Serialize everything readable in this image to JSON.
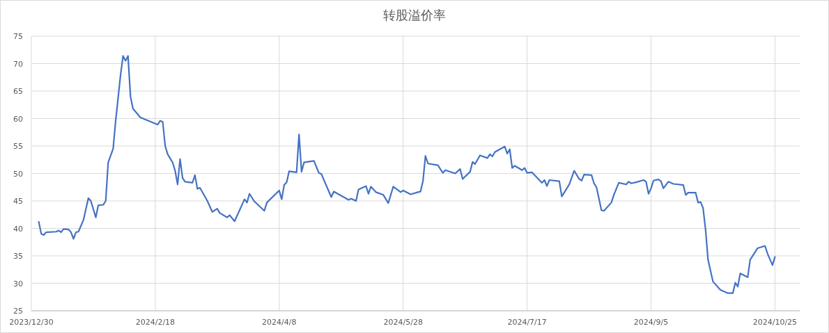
{
  "chart_data": {
    "type": "line",
    "title": "转股溢价率",
    "x": [
      "2024-01-02",
      "2024-01-03",
      "2024-01-04",
      "2024-01-05",
      "2024-01-09",
      "2024-01-10",
      "2024-01-11",
      "2024-01-12",
      "2024-01-14",
      "2024-01-15",
      "2024-01-16",
      "2024-01-17",
      "2024-01-18",
      "2024-01-20",
      "2024-01-22",
      "2024-01-23",
      "2024-01-25",
      "2024-01-26",
      "2024-01-28",
      "2024-01-29",
      "2024-01-30",
      "2024-02-01",
      "2024-02-02",
      "2024-02-04",
      "2024-02-05",
      "2024-02-06",
      "2024-02-07",
      "2024-02-08",
      "2024-02-09",
      "2024-02-12",
      "2024-02-19",
      "2024-02-20",
      "2024-02-21",
      "2024-02-22",
      "2024-02-23",
      "2024-02-25",
      "2024-02-26",
      "2024-02-27",
      "2024-02-28",
      "2024-02-29",
      "2024-03-01",
      "2024-03-04",
      "2024-03-05",
      "2024-03-06",
      "2024-03-07",
      "2024-03-10",
      "2024-03-12",
      "2024-03-14",
      "2024-03-15",
      "2024-03-18",
      "2024-03-19",
      "2024-03-21",
      "2024-03-25",
      "2024-03-26",
      "2024-03-27",
      "2024-03-29",
      "2024-04-02",
      "2024-04-03",
      "2024-04-08",
      "2024-04-09",
      "2024-04-10",
      "2024-04-11",
      "2024-04-12",
      "2024-04-15",
      "2024-04-16",
      "2024-04-17",
      "2024-04-18",
      "2024-04-22",
      "2024-04-24",
      "2024-04-25",
      "2024-04-29",
      "2024-04-30",
      "2024-05-06",
      "2024-05-07",
      "2024-05-09",
      "2024-05-10",
      "2024-05-13",
      "2024-05-14",
      "2024-05-15",
      "2024-05-17",
      "2024-05-20",
      "2024-05-22",
      "2024-05-24",
      "2024-05-27",
      "2024-05-28",
      "2024-05-31",
      "2024-06-03",
      "2024-06-04",
      "2024-06-05",
      "2024-06-06",
      "2024-06-07",
      "2024-06-11",
      "2024-06-13",
      "2024-06-14",
      "2024-06-18",
      "2024-06-20",
      "2024-06-21",
      "2024-06-24",
      "2024-06-25",
      "2024-06-26",
      "2024-06-28",
      "2024-07-01",
      "2024-07-02",
      "2024-07-03",
      "2024-07-04",
      "2024-07-08",
      "2024-07-09",
      "2024-07-10",
      "2024-07-11",
      "2024-07-12",
      "2024-07-15",
      "2024-07-16",
      "2024-07-17",
      "2024-07-19",
      "2024-07-23",
      "2024-07-24",
      "2024-07-25",
      "2024-07-26",
      "2024-07-30",
      "2024-07-31",
      "2024-08-03",
      "2024-08-05",
      "2024-08-07",
      "2024-08-08",
      "2024-08-09",
      "2024-08-12",
      "2024-08-13",
      "2024-08-14",
      "2024-08-16",
      "2024-08-17",
      "2024-08-20",
      "2024-08-21",
      "2024-08-23",
      "2024-08-26",
      "2024-08-27",
      "2024-08-28",
      "2024-08-30",
      "2024-09-02",
      "2024-09-03",
      "2024-09-04",
      "2024-09-05",
      "2024-09-06",
      "2024-09-08",
      "2024-09-09",
      "2024-09-10",
      "2024-09-12",
      "2024-09-14",
      "2024-09-18",
      "2024-09-19",
      "2024-09-20",
      "2024-09-23",
      "2024-09-24",
      "2024-09-25",
      "2024-09-26",
      "2024-09-27",
      "2024-09-28",
      "2024-09-30",
      "2024-10-03",
      "2024-10-06",
      "2024-10-08",
      "2024-10-09",
      "2024-10-10",
      "2024-10-11",
      "2024-10-14",
      "2024-10-15",
      "2024-10-18",
      "2024-10-21",
      "2024-10-22",
      "2024-10-24",
      "2024-10-25"
    ],
    "series": [
      {
        "color": "#4472c4",
        "values": [
          41.2,
          39.0,
          38.8,
          39.3,
          39.4,
          39.6,
          39.3,
          39.9,
          39.8,
          39.3,
          38.1,
          39.3,
          39.4,
          41.5,
          45.5,
          45.0,
          42.0,
          44.2,
          44.3,
          45.0,
          52.0,
          54.5,
          59.5,
          68.0,
          71.4,
          70.5,
          71.4,
          64.0,
          61.8,
          60.2,
          58.9,
          59.6,
          59.4,
          55.0,
          53.5,
          52.0,
          50.5,
          48.0,
          52.6,
          49.2,
          48.5,
          48.3,
          49.7,
          47.2,
          47.4,
          45.0,
          43.0,
          43.6,
          42.8,
          42.0,
          42.4,
          41.3,
          45.3,
          44.7,
          46.3,
          44.9,
          43.2,
          44.7,
          46.9,
          45.3,
          47.9,
          48.4,
          50.4,
          50.2,
          57.1,
          50.3,
          52.0,
          52.3,
          50.1,
          49.9,
          45.7,
          46.7,
          45.2,
          45.4,
          45.0,
          47.1,
          47.7,
          46.3,
          47.6,
          46.6,
          46.1,
          44.6,
          47.6,
          46.6,
          46.9,
          46.2,
          46.6,
          46.7,
          48.6,
          53.2,
          51.8,
          51.5,
          50.1,
          50.6,
          50.0,
          50.8,
          49.0,
          50.3,
          52.1,
          51.7,
          53.3,
          52.8,
          53.5,
          53.1,
          53.9,
          54.9,
          53.6,
          54.4,
          51.0,
          51.4,
          50.6,
          51.0,
          50.1,
          50.2,
          48.3,
          48.8,
          47.7,
          48.8,
          48.6,
          45.8,
          48.0,
          50.5,
          49.0,
          48.7,
          49.8,
          49.7,
          48.2,
          47.5,
          43.3,
          43.2,
          44.7,
          46.1,
          48.3,
          48.0,
          48.5,
          48.2,
          48.4,
          48.8,
          48.5,
          46.3,
          47.3,
          48.7,
          48.9,
          48.6,
          47.3,
          48.5,
          48.1,
          47.9,
          46.1,
          46.5,
          46.5,
          44.7,
          44.8,
          43.7,
          39.8,
          34.3,
          30.3,
          28.8,
          28.2,
          28.2,
          30.1,
          29.4,
          31.8,
          31.1,
          34.3,
          36.4,
          36.8,
          35.4,
          33.3,
          34.8
        ]
      }
    ],
    "xlim": [
      "2023-12-30",
      "2024-11-04"
    ],
    "xticks": [
      {
        "value": "2023-12-30",
        "label": "2023/12/30"
      },
      {
        "value": "2024-02-18",
        "label": "2024/2/18"
      },
      {
        "value": "2024-04-08",
        "label": "2024/4/8"
      },
      {
        "value": "2024-05-28",
        "label": "2024/5/28"
      },
      {
        "value": "2024-07-17",
        "label": "2024/7/17"
      },
      {
        "value": "2024-09-05",
        "label": "2024/9/5"
      },
      {
        "value": "2024-10-25",
        "label": "2024/10/25"
      }
    ],
    "ylim": [
      25,
      75
    ],
    "yticks": [
      25,
      30,
      35,
      40,
      45,
      50,
      55,
      60,
      65,
      70,
      75
    ],
    "grid": true,
    "marker": "none",
    "line_style": "solid"
  }
}
